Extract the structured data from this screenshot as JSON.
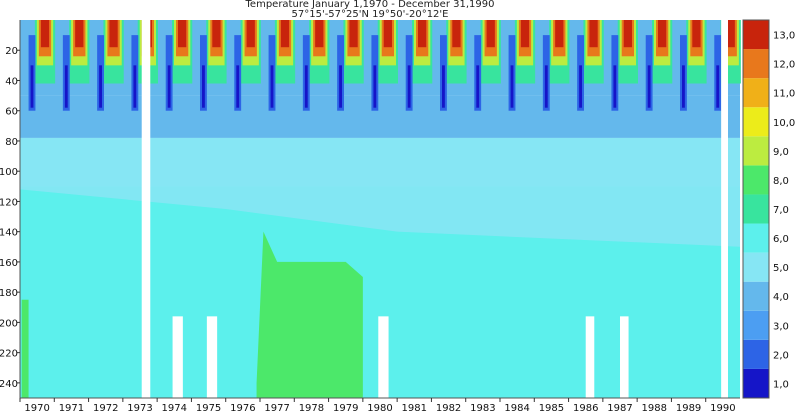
{
  "chart_data": {
    "type": "heatmap",
    "title": "Temperature January 1,1970 - December 31,1990",
    "subtitle": "57°15'-57°25'N 19°50'-20°12'E",
    "xlabel": "",
    "ylabel": "",
    "x_tick_labels": [
      "1970",
      "1971",
      "1972",
      "1973",
      "1974",
      "1975",
      "1976",
      "1977",
      "1978",
      "1979",
      "1980",
      "1981",
      "1982",
      "1983",
      "1984",
      "1985",
      "1986",
      "1987",
      "1988",
      "1989",
      "1990"
    ],
    "x_ticks": [
      1970,
      1971,
      1972,
      1973,
      1974,
      1975,
      1976,
      1977,
      1978,
      1979,
      1980,
      1981,
      1982,
      1983,
      1984,
      1985,
      1986,
      1987,
      1988,
      1989,
      1990
    ],
    "xlim": [
      1970,
      1991
    ],
    "y_ticks": [
      20,
      40,
      60,
      80,
      100,
      120,
      140,
      160,
      180,
      200,
      220,
      240
    ],
    "y_tick_labels": [
      "20",
      "40",
      "60",
      "80",
      "100",
      "120",
      "140",
      "160",
      "180",
      "200",
      "220",
      "240"
    ],
    "ylim": [
      0,
      250
    ],
    "y_inverted": true,
    "colorbar": {
      "labels": [
        "1,0",
        "2,0",
        "3,0",
        "4,0",
        "5,0",
        "6,0",
        "7,0",
        "8,0",
        "9,0",
        "10,0",
        "11,0",
        "12,0",
        "13,0"
      ],
      "levels": [
        1,
        2,
        3,
        4,
        5,
        6,
        7,
        8,
        9,
        10,
        11,
        12,
        13
      ],
      "colors": [
        "#1515c8",
        "#2d64e6",
        "#4c9ef2",
        "#64b8ec",
        "#86e6f4",
        "#5cf0ec",
        "#38e49e",
        "#4ce86a",
        "#bcec40",
        "#ecec1a",
        "#f0b018",
        "#e8781c",
        "#c8240c"
      ]
    },
    "grid": false
  }
}
